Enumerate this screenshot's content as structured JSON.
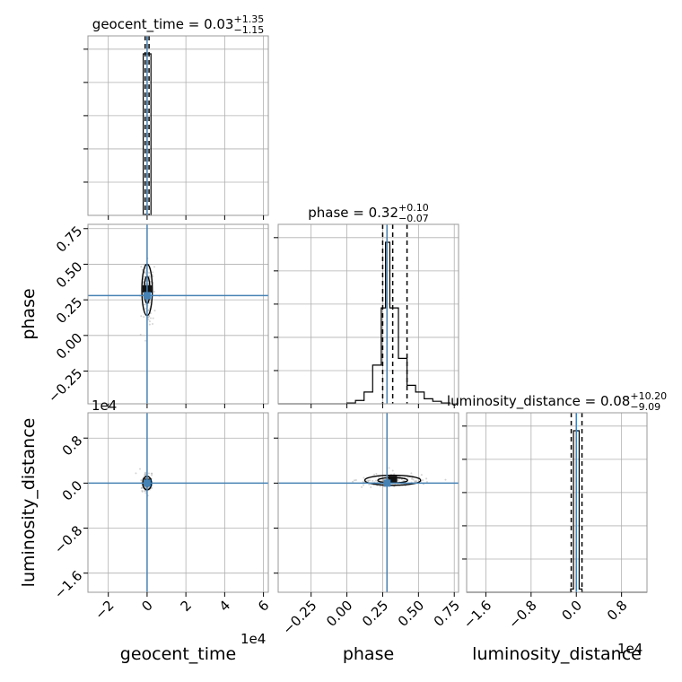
{
  "chart_data": {
    "type": "corner",
    "parameters": [
      "geocent_time",
      "phase",
      "luminosity_distance"
    ],
    "axis_labels": {
      "geocent_time": "geocent_time",
      "phase": "phase",
      "luminosity_distance": "luminosity_distance"
    },
    "axis_multipliers": {
      "geocent_time": "1e4",
      "phase": "",
      "luminosity_distance": "1e4"
    },
    "ticks": {
      "geocent_time": {
        "values": [
          -2,
          0,
          2,
          4,
          6
        ],
        "labels": [
          "−2",
          "0",
          "2",
          "4",
          "6"
        ],
        "range": [
          -3.05,
          6.25
        ]
      },
      "phase": {
        "values": [
          -0.25,
          0.0,
          0.25,
          0.5,
          0.75
        ],
        "labels": [
          "−0.25",
          "0.00",
          "0.25",
          "0.50",
          "0.75"
        ],
        "range": [
          -0.48,
          0.78
        ]
      },
      "luminosity_distance": {
        "values": [
          -1.6,
          -0.8,
          0.0,
          0.8
        ],
        "labels": [
          "−1.6",
          "−0.8",
          "0.0",
          "0.8"
        ],
        "range": [
          -1.94,
          1.25
        ]
      }
    },
    "titles": [
      {
        "param": "geocent_time",
        "prefix": "geocent_time = ",
        "median": "0.03",
        "upper": "+1.35",
        "lower": "−1.15"
      },
      {
        "param": "phase",
        "prefix": "phase = ",
        "median": "0.32",
        "upper": "+0.10",
        "lower": "−0.07"
      },
      {
        "param": "luminosity_distance",
        "prefix": "luminosity_distance = ",
        "median": "0.08",
        "upper": "+10.20",
        "lower": "−9.09"
      }
    ],
    "truths": {
      "geocent_time": 0.0,
      "phase": 0.28,
      "luminosity_distance": 0.0
    },
    "quantile_lines": {
      "geocent_time": [
        -0.1,
        0.0,
        0.1
      ],
      "phase": [
        0.25,
        0.32,
        0.42
      ],
      "luminosity_distance": [
        -0.09,
        0.0,
        0.1
      ]
    },
    "histograms": {
      "geocent_time": {
        "edges": [
          -0.2,
          0.0,
          0.2
        ],
        "counts": [
          1.0,
          1.0
        ]
      },
      "phase": {
        "edges": [
          -0.48,
          -0.42,
          -0.36,
          -0.3,
          -0.24,
          -0.18,
          -0.12,
          -0.06,
          0.0,
          0.06,
          0.12,
          0.18,
          0.24,
          0.27,
          0.3,
          0.36,
          0.42,
          0.48,
          0.54,
          0.6,
          0.66,
          0.72,
          0.78
        ],
        "counts": [
          0,
          0,
          0,
          0,
          0,
          0,
          0,
          0,
          0.005,
          0.02,
          0.07,
          0.23,
          0.57,
          0.96,
          0.57,
          0.27,
          0.11,
          0.07,
          0.03,
          0.015,
          0.005,
          0
        ]
      },
      "luminosity_distance": {
        "edges": [
          -1.94,
          -0.1,
          -0.05,
          0.05,
          0.1,
          1.25
        ],
        "counts": [
          0,
          0.02,
          1.0,
          0.02,
          0
        ]
      }
    },
    "contours_2d": [
      {
        "x": "geocent_time",
        "y": "phase",
        "center": [
          0.0,
          0.32
        ],
        "half_width": [
          0.18,
          0.12
        ]
      },
      {
        "x": "geocent_time",
        "y": "luminosity_distance",
        "center": [
          0.0,
          0.0
        ],
        "half_width": [
          0.15,
          0.08
        ]
      },
      {
        "x": "phase",
        "y": "luminosity_distance",
        "center": [
          0.32,
          0.05
        ],
        "half_width": [
          0.13,
          0.06
        ]
      }
    ],
    "grid": true,
    "colors": {
      "truth": "#4682b4",
      "hist": "#000000",
      "grid": "#b0b0b0",
      "scatter": "#aaaaaa"
    }
  }
}
